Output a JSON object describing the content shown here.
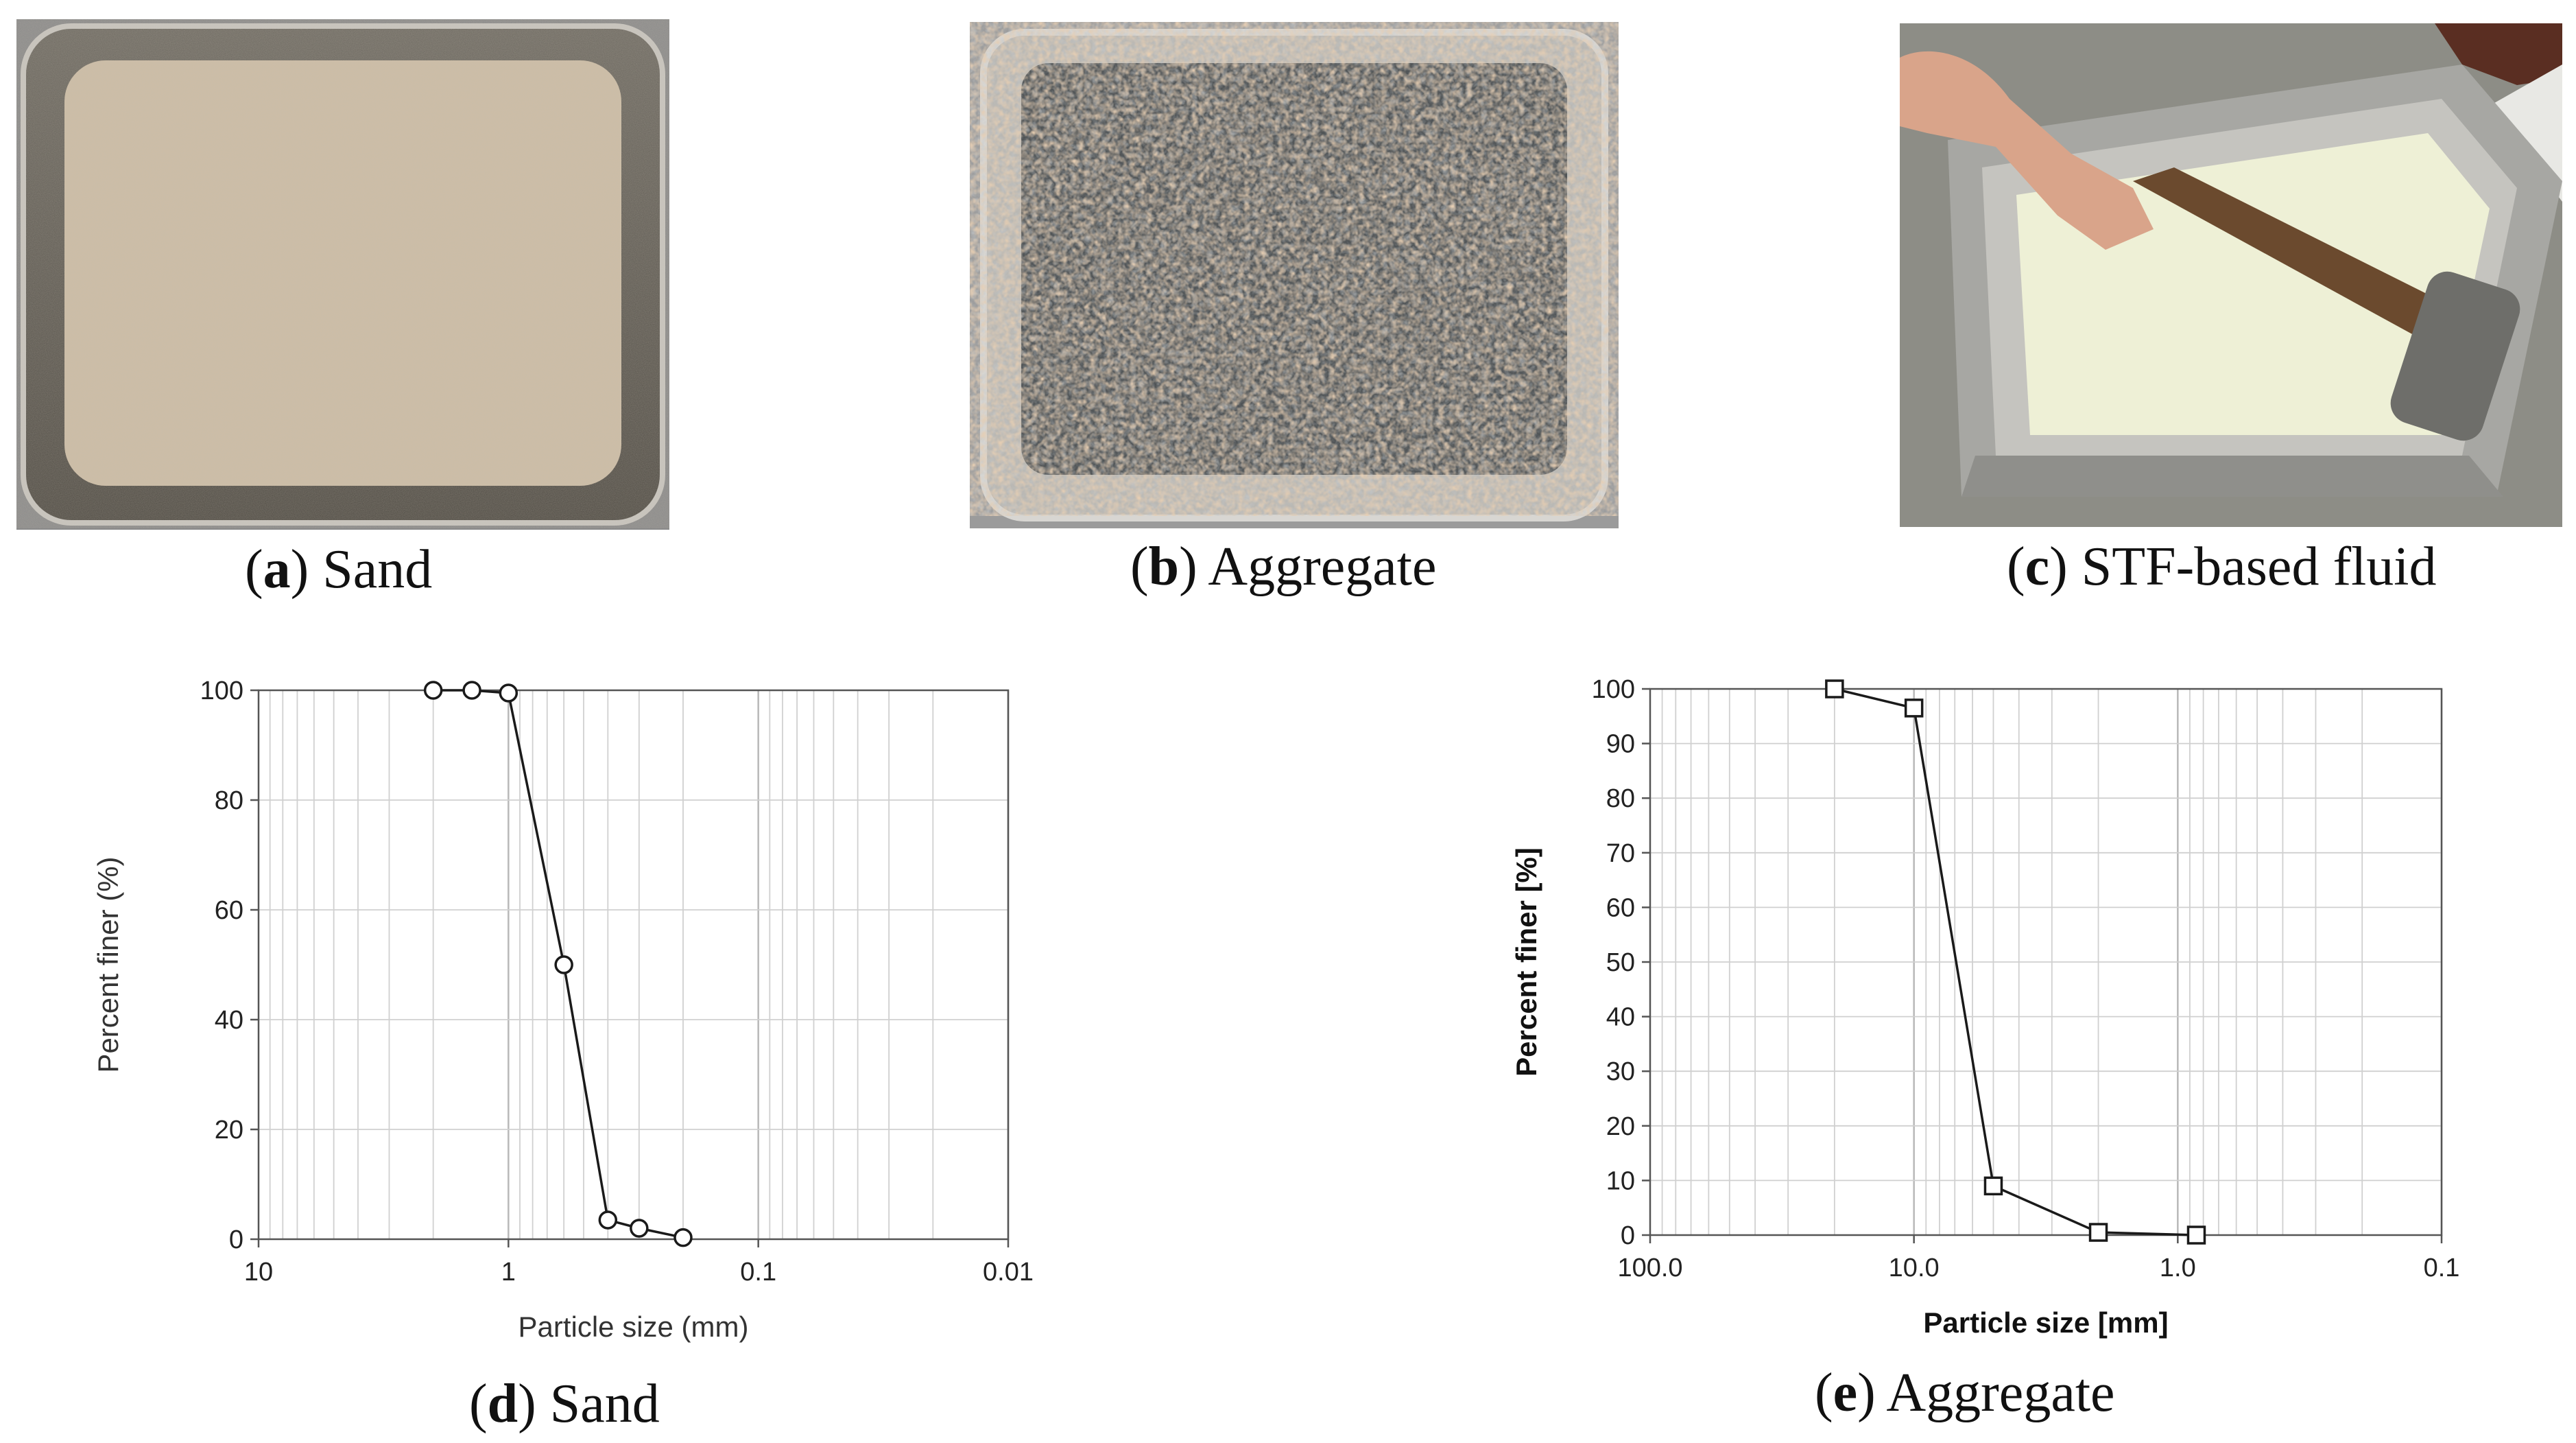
{
  "panels": {
    "a": {
      "letter": "a",
      "label": "Sand"
    },
    "b": {
      "letter": "b",
      "label": "Aggregate"
    },
    "c": {
      "letter": "c",
      "label": "STF-based fluid"
    },
    "d": {
      "letter": "d",
      "label": "Sand"
    },
    "e": {
      "letter": "e",
      "label": "Aggregate"
    }
  },
  "colors": {
    "line": "#1a1a1a",
    "grid": "#d0d0d0",
    "axis": "#555555"
  },
  "chart_data": [
    {
      "type": "line",
      "marker": "circle",
      "xscale": "log",
      "x_reversed": true,
      "xlim": [
        10,
        0.01
      ],
      "ylim": [
        0,
        100
      ],
      "xticks": [
        "10",
        "1",
        "0.1",
        "0.01"
      ],
      "yticks": [
        "0",
        "20",
        "40",
        "60",
        "80",
        "100"
      ],
      "xlabel": "Particle size (mm)",
      "ylabel": "Percent finer (%)",
      "grid": true,
      "x": [
        2.0,
        1.4,
        1.0,
        0.6,
        0.4,
        0.3,
        0.2
      ],
      "y": [
        100,
        100,
        99.5,
        50,
        3.5,
        2,
        0.3
      ]
    },
    {
      "type": "line",
      "marker": "square",
      "xscale": "log",
      "x_reversed": true,
      "xlim": [
        100,
        0.1
      ],
      "ylim": [
        0,
        100
      ],
      "xticks": [
        "100.0",
        "10.0",
        "1.0",
        "0.1"
      ],
      "yticks": [
        "0",
        "10",
        "20",
        "30",
        "40",
        "50",
        "60",
        "70",
        "80",
        "90",
        "100"
      ],
      "xlabel": "Particle size [mm]",
      "ylabel": "Percent finer [%]",
      "grid": true,
      "x": [
        20,
        10,
        5,
        2,
        0.85
      ],
      "y": [
        100,
        96.5,
        9,
        0.5,
        0
      ]
    }
  ]
}
